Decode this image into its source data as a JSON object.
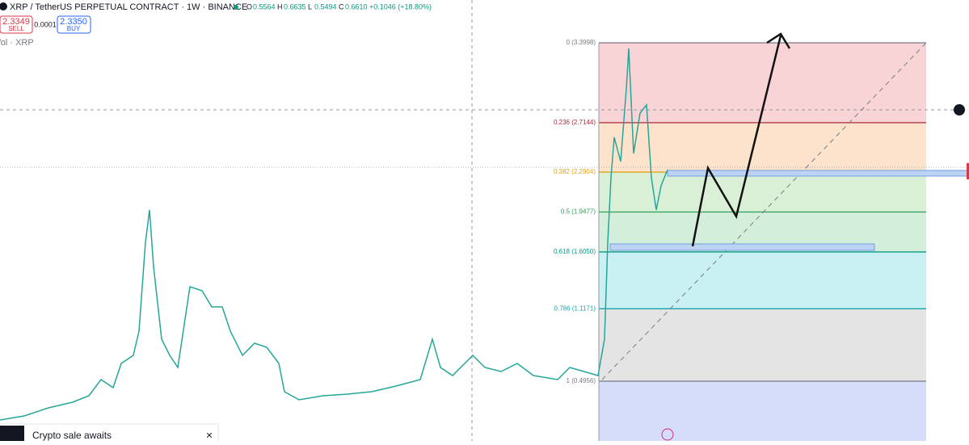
{
  "header": {
    "symbol": "XRP / TetherUS PERPETUAL CONTRACT · 1W · BINANCE",
    "ohlc": [
      {
        "label": "O",
        "value": "0.5564"
      },
      {
        "label": "H",
        "value": "0.6635"
      },
      {
        "label": "L",
        "value": "0.5494"
      },
      {
        "label": "C",
        "value": "0.6610"
      }
    ],
    "change": "+0.1046 (+18.80%)"
  },
  "trade": {
    "sell_price": "2.3349",
    "sell_label": "SELL",
    "spread": "0.0001",
    "buy_price": "2.3350",
    "buy_label": "BUY"
  },
  "volume_label": "Vol · XRP",
  "fib_levels": [
    {
      "label": "0 (3.3998)",
      "price": 3.3998,
      "color": "#787b86",
      "zone": "#f9d4d6"
    },
    {
      "label": "0.236 (2.7144)",
      "price": 2.7144,
      "color": "#b2283a",
      "zone": "#fde3cc"
    },
    {
      "label": "0.382 (2.2904)",
      "price": 2.2904,
      "color": "#e3a21a",
      "zone": "#d9f0d6"
    },
    {
      "label": "0.5 (1.9477)",
      "price": 1.9477,
      "color": "#2f9e5a",
      "zone": "#d3efdc"
    },
    {
      "label": "0.618 (1.6050)",
      "price": 1.605,
      "color": "#089981",
      "zone": "#c9f0f2"
    },
    {
      "label": "0.786 (1.1171)",
      "price": 1.1171,
      "color": "#1aa3a8",
      "zone": "#e4e4e4"
    },
    {
      "label": "1 (0.4956)",
      "price": 0.4956,
      "color": "#787b86",
      "zone": "#d6ddfa"
    }
  ],
  "popup": {
    "text": "Crypto sale awaits",
    "close": "×"
  }
}
